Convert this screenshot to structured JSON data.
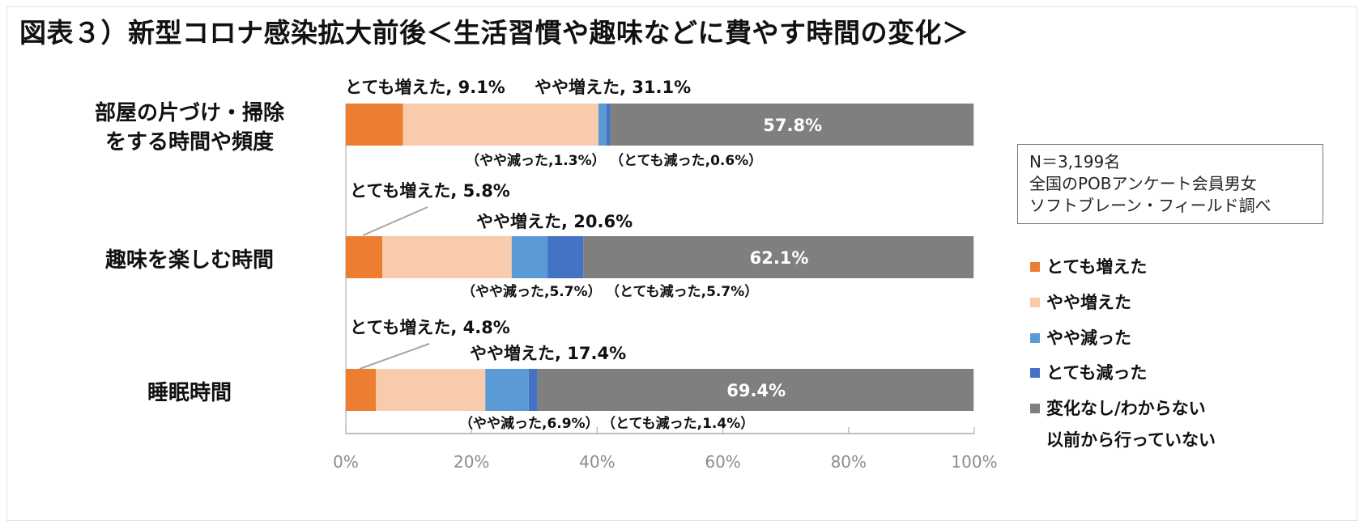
{
  "title": "図表３）新型コロナ感染拡大前後＜生活習慣や趣味などに費やす時間の変化＞",
  "note": {
    "line1": "N＝3,199名",
    "line2": "全国のPOBアンケート会員男女",
    "line3": "ソフトブレーン・フィールド調べ"
  },
  "legend": {
    "items": [
      "とても増えた",
      "やや増えた",
      "やや減った",
      "とても減った",
      "変化なし/わからない"
    ],
    "extra_line": "以前から行っていない"
  },
  "colors": [
    "#ed7d31",
    "#f8cbad",
    "#5b9bd5",
    "#4472c4",
    "#7f7f7f"
  ],
  "chart_data": {
    "type": "bar",
    "orientation": "horizontal",
    "stacked": true,
    "categories": [
      "部屋の片づけ・掃除\nをする時間や頻度",
      "趣味を楽しむ時間",
      "睡眠時間"
    ],
    "series": [
      {
        "name": "とても増えた",
        "values": [
          9.1,
          5.8,
          4.8
        ]
      },
      {
        "name": "やや増えた",
        "values": [
          31.1,
          20.6,
          17.4
        ]
      },
      {
        "name": "やや減った",
        "values": [
          1.3,
          5.7,
          6.9
        ]
      },
      {
        "name": "とても減った",
        "values": [
          0.6,
          5.7,
          1.4
        ]
      },
      {
        "name": "変化なし/わからない 以前から行っていない",
        "values": [
          57.8,
          62.1,
          69.4
        ]
      }
    ],
    "xlim": [
      0,
      100
    ],
    "x_ticks": [
      "0%",
      "20%",
      "40%",
      "60%",
      "80%",
      "100%"
    ],
    "data_labels": [
      {
        "top": [
          "とても増えた, 9.1%",
          "やや増えた, 31.1%"
        ],
        "bottom": [
          "（やや減った,1.3%）",
          "（とても減った,0.6%）"
        ],
        "inside": "57.8%"
      },
      {
        "top": [
          "とても増えた, 5.8%",
          "やや増えた, 20.6%"
        ],
        "bottom": [
          "（やや減った,5.7%）",
          "（とても減った,5.7%）"
        ],
        "inside": "62.1%"
      },
      {
        "top": [
          "とても増えた, 4.8%",
          "やや増えた, 17.4%"
        ],
        "bottom": [
          "（やや減った,6.9%）",
          "（とても減った,1.4%）"
        ],
        "inside": "69.4%"
      }
    ],
    "legend_position": "right"
  }
}
